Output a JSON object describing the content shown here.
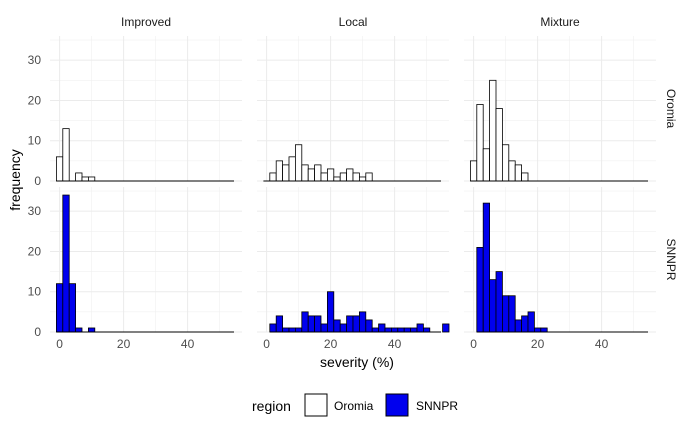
{
  "chart_data": {
    "type": "bar",
    "title": "",
    "xlabel": "severity (%)",
    "ylabel": "frequency",
    "xlim": [
      -3,
      57
    ],
    "ylim": [
      0,
      36
    ],
    "x_ticks": [
      0,
      20,
      40
    ],
    "y_ticks": [
      0,
      10,
      20,
      30
    ],
    "bin_width": 2,
    "grid": true,
    "columns": [
      "Improved",
      "Local",
      "Mixture"
    ],
    "rows": [
      "Oromia",
      "SNNPR"
    ],
    "legend": {
      "title": "region",
      "position": "bottom",
      "entries": [
        {
          "label": "Oromia",
          "color": "#ffffff"
        },
        {
          "label": "SNNPR",
          "color": "#0000ee"
        }
      ]
    },
    "panels": [
      {
        "column": "Improved",
        "row": "Oromia",
        "fill": "#ffffff",
        "bin_centers": [
          0,
          2,
          4,
          6,
          8,
          10
        ],
        "counts": [
          6,
          13,
          0,
          2,
          1,
          1
        ]
      },
      {
        "column": "Local",
        "row": "Oromia",
        "fill": "#ffffff",
        "bin_centers": [
          0,
          2,
          4,
          6,
          8,
          10,
          12,
          14,
          16,
          18,
          20,
          22,
          24,
          26,
          28,
          30,
          32
        ],
        "counts": [
          0,
          2,
          5,
          4,
          6,
          9,
          4,
          3,
          4,
          2,
          3,
          1,
          2,
          3,
          2,
          1,
          2
        ]
      },
      {
        "column": "Mixture",
        "row": "Oromia",
        "fill": "#ffffff",
        "bin_centers": [
          0,
          2,
          4,
          6,
          8,
          10,
          12,
          14,
          16
        ],
        "counts": [
          5,
          19,
          8,
          25,
          18,
          9,
          5,
          4,
          2
        ]
      },
      {
        "column": "Improved",
        "row": "SNNPR",
        "fill": "#0000ee",
        "bin_centers": [
          0,
          2,
          4,
          6,
          8,
          10
        ],
        "counts": [
          12,
          34,
          12,
          1,
          0,
          1
        ]
      },
      {
        "column": "Local",
        "row": "SNNPR",
        "fill": "#0000ee",
        "bin_centers": [
          2,
          4,
          6,
          8,
          10,
          12,
          14,
          16,
          18,
          20,
          22,
          24,
          26,
          28,
          30,
          32,
          34,
          36,
          38,
          40,
          42,
          44,
          46,
          48,
          50,
          52,
          54,
          56
        ],
        "counts": [
          2,
          4,
          1,
          1,
          1,
          5,
          4,
          4,
          2,
          10,
          3,
          2,
          4,
          4,
          5,
          3,
          1,
          2,
          1,
          1,
          1,
          1,
          1,
          2,
          1,
          0,
          0,
          2
        ]
      },
      {
        "column": "Mixture",
        "row": "SNNPR",
        "fill": "#0000ee",
        "bin_centers": [
          2,
          4,
          6,
          8,
          10,
          12,
          14,
          16,
          18,
          20,
          22
        ],
        "counts": [
          21,
          32,
          13,
          15,
          9,
          9,
          3,
          4,
          5,
          1,
          1
        ]
      }
    ]
  }
}
